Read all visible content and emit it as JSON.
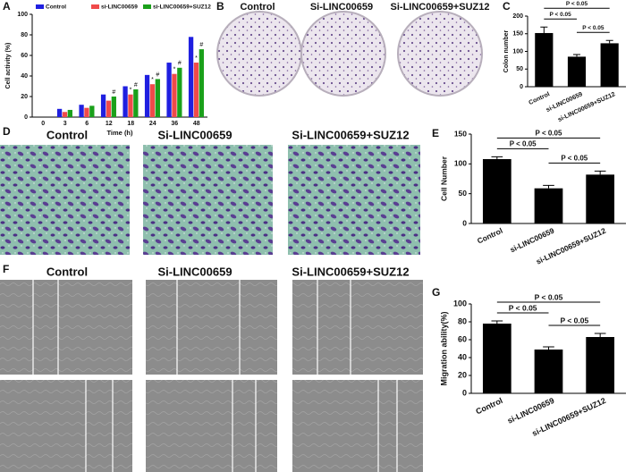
{
  "chart_data": [
    {
      "type": "bar",
      "label": "A",
      "x_label": "Time (h)",
      "y_label": "Cell activity (%)",
      "categories": [
        "0",
        "3",
        "6",
        "12",
        "18",
        "24",
        "36",
        "48"
      ],
      "series": [
        {
          "name": "Control",
          "color": "#1f1fe0",
          "values": [
            0,
            8,
            12,
            22,
            30,
            41,
            53,
            78
          ],
          "annotations": [
            null,
            null,
            null,
            null,
            null,
            null,
            null,
            null
          ]
        },
        {
          "name": "si-LINC00659",
          "color": "#f04a4a",
          "values": [
            0,
            5,
            9,
            16,
            22,
            32,
            42,
            53
          ],
          "annotations": [
            null,
            null,
            null,
            null,
            "*",
            "*",
            "*",
            "*"
          ]
        },
        {
          "name": "si-LINC00659+SUZ12",
          "color": "#1aa01a",
          "values": [
            0,
            7,
            11,
            20,
            27,
            37,
            48,
            66
          ],
          "annotations": [
            null,
            null,
            null,
            "#",
            "#",
            "#",
            "#",
            "#"
          ]
        }
      ],
      "ylim": [
        0,
        100
      ],
      "yticks": [
        0,
        20,
        40,
        60,
        80,
        100
      ]
    },
    {
      "type": "bar",
      "label": "C",
      "y_label": "Colon number",
      "categories": [
        "Control",
        "si-LINC00659",
        "si-LINC00659+SUZ12"
      ],
      "values": [
        152,
        85,
        123
      ],
      "errors": [
        17,
        6,
        8
      ],
      "color": "#000000",
      "ylim": [
        0,
        200
      ],
      "yticks": [
        0,
        50,
        100,
        150,
        200
      ],
      "comparisons": [
        {
          "pair": [
            0,
            1
          ],
          "label": "P < 0.05"
        },
        {
          "pair": [
            0,
            2
          ],
          "label": "P < 0.05"
        },
        {
          "pair": [
            1,
            2
          ],
          "label": "P < 0.05"
        }
      ]
    },
    {
      "type": "bar",
      "label": "E",
      "y_label": "Cell Number",
      "categories": [
        "Control",
        "si-LINC00659",
        "si-LINC00659+SUZ12"
      ],
      "values": [
        108,
        59,
        82
      ],
      "errors": [
        4,
        5,
        6
      ],
      "color": "#000000",
      "ylim": [
        0,
        150
      ],
      "yticks": [
        0,
        50,
        100,
        150
      ],
      "comparisons": [
        {
          "pair": [
            0,
            1
          ],
          "label": "P < 0.05"
        },
        {
          "pair": [
            0,
            2
          ],
          "label": "P < 0.05"
        },
        {
          "pair": [
            1,
            2
          ],
          "label": "P < 0.05"
        }
      ]
    },
    {
      "type": "bar",
      "label": "G",
      "y_label": "Migration ability(%)",
      "categories": [
        "Control",
        "si-LINC00659",
        "si-LINC00659+SUZ12"
      ],
      "values": [
        78,
        49,
        63
      ],
      "errors": [
        3,
        3,
        4
      ],
      "color": "#000000",
      "ylim": [
        0,
        100
      ],
      "yticks": [
        0,
        20,
        40,
        60,
        80,
        100
      ],
      "comparisons": [
        {
          "pair": [
            0,
            1
          ],
          "label": "P < 0.05"
        },
        {
          "pair": [
            0,
            2
          ],
          "label": "P < 0.05"
        },
        {
          "pair": [
            1,
            2
          ],
          "label": "P < 0.05"
        }
      ]
    }
  ],
  "image_panels": [
    {
      "label": "B",
      "captions": [
        "Control",
        "Si-LINC00659",
        "Si-LINC00659+SUZ12"
      ]
    },
    {
      "label": "D",
      "captions": [
        "Control",
        "Si-LINC00659",
        "Si-LINC00659+SUZ12"
      ]
    },
    {
      "label": "F",
      "captions": [
        "Control",
        "Si-LINC00659",
        "Si-LINC00659+SUZ12"
      ]
    }
  ]
}
